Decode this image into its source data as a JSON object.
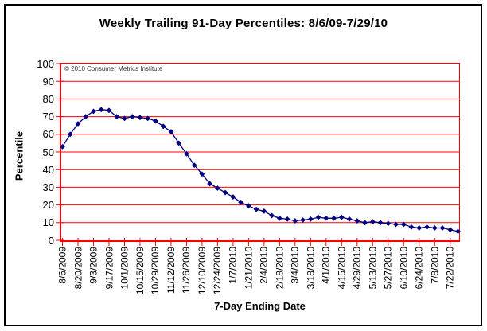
{
  "chart_data": {
    "type": "line",
    "title": "Weekly Trailing 91-Day Percentiles: 8/6/09-7/29/10",
    "xlabel": "7-Day Ending Date",
    "ylabel": "Percentile",
    "annotation": "© 2010 Consumer Metrics Institute",
    "legend_position": "none",
    "grid": "horizontal",
    "ylim": [
      0,
      100
    ],
    "yticks": [
      0,
      10,
      20,
      30,
      40,
      50,
      60,
      70,
      80,
      90,
      100
    ],
    "x": [
      "8/6/2009",
      "8/13/2009",
      "8/20/2009",
      "8/27/2009",
      "9/3/2009",
      "9/10/2009",
      "9/17/2009",
      "9/24/2009",
      "10/1/2009",
      "10/8/2009",
      "10/15/2009",
      "10/22/2009",
      "10/29/2009",
      "11/5/2009",
      "11/12/2009",
      "11/19/2009",
      "11/26/2009",
      "12/3/2009",
      "12/10/2009",
      "12/17/2009",
      "12/24/2009",
      "12/31/2009",
      "1/7/2010",
      "1/14/2010",
      "1/21/2010",
      "1/28/2010",
      "2/4/2010",
      "2/11/2010",
      "2/18/2010",
      "2/25/2010",
      "3/4/2010",
      "3/11/2010",
      "3/18/2010",
      "3/25/2010",
      "4/1/2010",
      "4/8/2010",
      "4/15/2010",
      "4/22/2010",
      "4/29/2010",
      "5/6/2010",
      "5/13/2010",
      "5/20/2010",
      "5/27/2010",
      "6/3/2010",
      "6/10/2010",
      "6/17/2010",
      "6/24/2010",
      "7/1/2010",
      "7/8/2010",
      "7/15/2010",
      "7/22/2010",
      "7/29/2010"
    ],
    "xtick_labels": [
      "8/6/2009",
      "8/20/2009",
      "9/3/2009",
      "9/17/2009",
      "10/1/2009",
      "10/15/2009",
      "10/29/2009",
      "11/12/2009",
      "11/26/2009",
      "12/10/2009",
      "12/24/2009",
      "1/7/2010",
      "1/21/2010",
      "2/4/2010",
      "2/18/2010",
      "3/4/2010",
      "3/18/2010",
      "4/1/2010",
      "4/15/2010",
      "4/29/2010",
      "5/13/2010",
      "5/27/2010",
      "6/10/2010",
      "6/24/2010",
      "7/8/2010",
      "7/22/2010"
    ],
    "values": [
      53,
      60,
      66,
      70,
      73,
      74,
      73.5,
      70,
      69,
      70,
      69.5,
      69,
      67.5,
      64.5,
      61.5,
      55,
      49,
      42.5,
      37.5,
      32,
      29.5,
      27,
      24.5,
      21.5,
      19.5,
      17.5,
      16.5,
      14,
      12.5,
      12,
      11,
      11.5,
      12,
      13,
      12.5,
      12.5,
      13,
      12,
      11,
      10,
      10.5,
      10,
      9.5,
      9,
      9,
      7.5,
      7,
      7.5,
      7,
      7,
      6,
      5
    ],
    "marker": "diamond",
    "colors": {
      "series": "#000080",
      "grid": "#ff0000",
      "axis": "#ff0000",
      "text": "#000000",
      "background": "#ffffff",
      "frame_border": "#000000"
    }
  }
}
